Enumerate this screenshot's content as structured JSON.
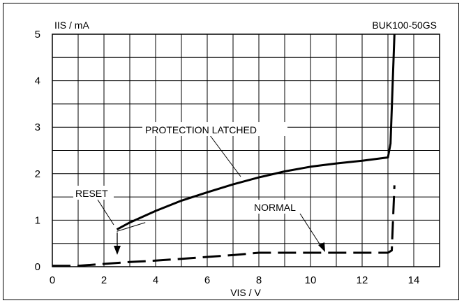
{
  "chart_data": {
    "type": "line",
    "title": "BUK100-50GS",
    "xlabel": "VIS / V",
    "ylabel": "IIS / mA",
    "xlim": [
      0,
      15
    ],
    "ylim": [
      0,
      5
    ],
    "x_ticks": [
      0,
      2,
      4,
      6,
      8,
      10,
      12,
      14
    ],
    "y_ticks": [
      0,
      1,
      2,
      3,
      4,
      5
    ],
    "x_ticks_labels": [
      "0",
      "2",
      "4",
      "6",
      "8",
      "10",
      "12",
      "14"
    ],
    "y_ticks_labels": [
      "0",
      "1",
      "2",
      "3",
      "4",
      "5"
    ],
    "grid": true,
    "series": [
      {
        "name": "PROTECTION LATCHED",
        "style": "solid",
        "x": [
          2.5,
          3.0,
          4.0,
          5.0,
          6.0,
          7.0,
          8.0,
          9.0,
          10.0,
          11.0,
          12.0,
          13.0,
          13.1,
          13.25
        ],
        "y": [
          0.8,
          0.95,
          1.2,
          1.42,
          1.6,
          1.77,
          1.92,
          2.05,
          2.15,
          2.22,
          2.28,
          2.35,
          2.65,
          5.0
        ]
      },
      {
        "name": "NORMAL",
        "style": "dashed",
        "x": [
          0.0,
          1.0,
          2.0,
          3.0,
          4.0,
          5.0,
          6.0,
          7.0,
          8.0,
          9.0,
          10.0,
          11.0,
          12.0,
          13.0,
          13.15,
          13.25
        ],
        "y": [
          0.02,
          0.02,
          0.06,
          0.1,
          0.13,
          0.17,
          0.21,
          0.25,
          0.3,
          0.3,
          0.3,
          0.3,
          0.3,
          0.3,
          0.35,
          1.75
        ]
      }
    ],
    "annotations": [
      {
        "text": "PROTECTION LATCHED"
      },
      {
        "text": "RESET"
      },
      {
        "text": "NORMAL"
      }
    ],
    "colors": {
      "line": "#000000",
      "grid": "#000000",
      "background": "#ffffff"
    }
  }
}
